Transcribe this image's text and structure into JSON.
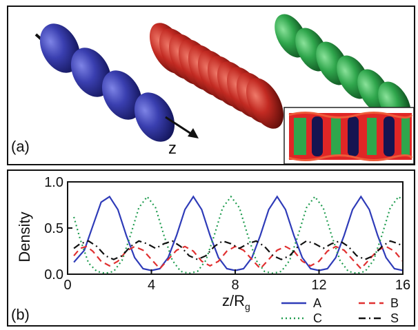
{
  "panel_a": {
    "label": "(a)",
    "axis_label": "z",
    "colors": {
      "A_blue": "#2f2f9c",
      "B_red": "#b31e1e",
      "C_green": "#2f9e4c",
      "inset_bg": "#e02626"
    }
  },
  "panel_b": {
    "label": "(b)"
  },
  "chart_data": {
    "type": "line",
    "xlabel": "z/R",
    "xlabel_subscript": "g",
    "ylabel": "Density",
    "xlim": [
      0,
      16
    ],
    "ylim": [
      0,
      1.0
    ],
    "x_ticks": [
      "0",
      "4",
      "8",
      "12",
      "16"
    ],
    "y_ticks": [
      "0.0",
      "0.5",
      "1.0"
    ],
    "grid": false,
    "legend_position": "bottom",
    "period": 4,
    "x_start": 0.3,
    "series": [
      {
        "name": "A",
        "color": "#2e3bb8",
        "style": "solid",
        "x": [
          0.3,
          0.8,
          1.2,
          1.6,
          2.0,
          2.4,
          2.8,
          3.2,
          3.6,
          4.0,
          4.4,
          4.8,
          5.2,
          5.6,
          6.0,
          6.4,
          6.8,
          7.2,
          7.6,
          8.0,
          8.4,
          8.8,
          9.2,
          9.6,
          10.0,
          10.4,
          10.8,
          11.2,
          11.6,
          12.0,
          12.4,
          12.8,
          13.2,
          13.6,
          14.0,
          14.4,
          14.8,
          15.2,
          15.6,
          16.0
        ],
        "y": [
          0.13,
          0.26,
          0.52,
          0.78,
          0.84,
          0.7,
          0.42,
          0.18,
          0.06,
          0.04,
          0.06,
          0.18,
          0.42,
          0.7,
          0.84,
          0.7,
          0.42,
          0.18,
          0.06,
          0.04,
          0.06,
          0.18,
          0.42,
          0.7,
          0.84,
          0.7,
          0.42,
          0.18,
          0.06,
          0.04,
          0.06,
          0.18,
          0.42,
          0.7,
          0.84,
          0.7,
          0.42,
          0.18,
          0.06,
          0.04
        ]
      },
      {
        "name": "B",
        "color": "#e03030",
        "style": "dashed",
        "x": [
          0.3,
          0.6,
          0.9,
          1.2,
          1.6,
          2.0,
          2.4,
          2.8,
          3.2,
          3.6,
          4.0,
          4.4,
          4.8,
          5.2,
          5.6,
          6.0,
          6.4,
          6.8,
          7.2,
          7.6,
          8.0,
          8.4,
          8.8,
          9.2,
          9.6,
          10.0,
          10.4,
          10.8,
          11.2,
          11.6,
          12.0,
          12.4,
          12.8,
          13.2,
          13.6,
          14.0,
          14.4,
          14.8,
          15.2,
          15.6,
          16.0
        ],
        "y": [
          0.2,
          0.28,
          0.3,
          0.25,
          0.14,
          0.09,
          0.14,
          0.25,
          0.3,
          0.26,
          0.16,
          0.06,
          0.16,
          0.26,
          0.3,
          0.25,
          0.14,
          0.09,
          0.14,
          0.25,
          0.3,
          0.26,
          0.16,
          0.06,
          0.16,
          0.26,
          0.3,
          0.25,
          0.14,
          0.09,
          0.14,
          0.25,
          0.3,
          0.26,
          0.16,
          0.06,
          0.16,
          0.26,
          0.3,
          0.25,
          0.14
        ]
      },
      {
        "name": "C",
        "color": "#1f9c4f",
        "style": "dotted",
        "x": [
          0.3,
          0.6,
          1.0,
          1.4,
          1.8,
          2.2,
          2.6,
          3.0,
          3.4,
          3.8,
          4.2,
          4.6,
          5.0,
          5.4,
          5.8,
          6.2,
          6.6,
          7.0,
          7.4,
          7.8,
          8.2,
          8.6,
          9.0,
          9.4,
          9.8,
          10.2,
          10.6,
          11.0,
          11.4,
          11.8,
          12.2,
          12.6,
          13.0,
          13.4,
          13.8,
          14.2,
          14.6,
          15.0,
          15.4,
          15.8,
          16.0
        ],
        "y": [
          0.62,
          0.38,
          0.12,
          0.03,
          0.01,
          0.03,
          0.15,
          0.42,
          0.72,
          0.84,
          0.72,
          0.42,
          0.15,
          0.03,
          0.01,
          0.03,
          0.15,
          0.42,
          0.72,
          0.84,
          0.72,
          0.42,
          0.15,
          0.03,
          0.01,
          0.03,
          0.15,
          0.42,
          0.72,
          0.84,
          0.72,
          0.42,
          0.15,
          0.03,
          0.01,
          0.03,
          0.15,
          0.42,
          0.72,
          0.84,
          0.8
        ]
      },
      {
        "name": "S",
        "color": "#111111",
        "style": "dashdot",
        "x": [
          0.3,
          0.6,
          1.0,
          1.4,
          1.8,
          2.2,
          2.6,
          3.0,
          3.4,
          3.8,
          4.2,
          4.6,
          5.0,
          5.4,
          5.8,
          6.2,
          6.6,
          7.0,
          7.4,
          7.8,
          8.2,
          8.6,
          9.0,
          9.4,
          9.8,
          10.2,
          10.6,
          11.0,
          11.4,
          11.8,
          12.2,
          12.6,
          13.0,
          13.4,
          13.8,
          14.2,
          14.6,
          15.0,
          15.4,
          15.8,
          16.0
        ],
        "y": [
          0.28,
          0.33,
          0.36,
          0.3,
          0.2,
          0.16,
          0.2,
          0.3,
          0.36,
          0.33,
          0.28,
          0.33,
          0.36,
          0.3,
          0.2,
          0.16,
          0.2,
          0.3,
          0.36,
          0.33,
          0.28,
          0.33,
          0.36,
          0.3,
          0.2,
          0.16,
          0.2,
          0.3,
          0.36,
          0.33,
          0.28,
          0.33,
          0.36,
          0.3,
          0.2,
          0.16,
          0.2,
          0.3,
          0.36,
          0.33,
          0.3
        ]
      }
    ]
  }
}
